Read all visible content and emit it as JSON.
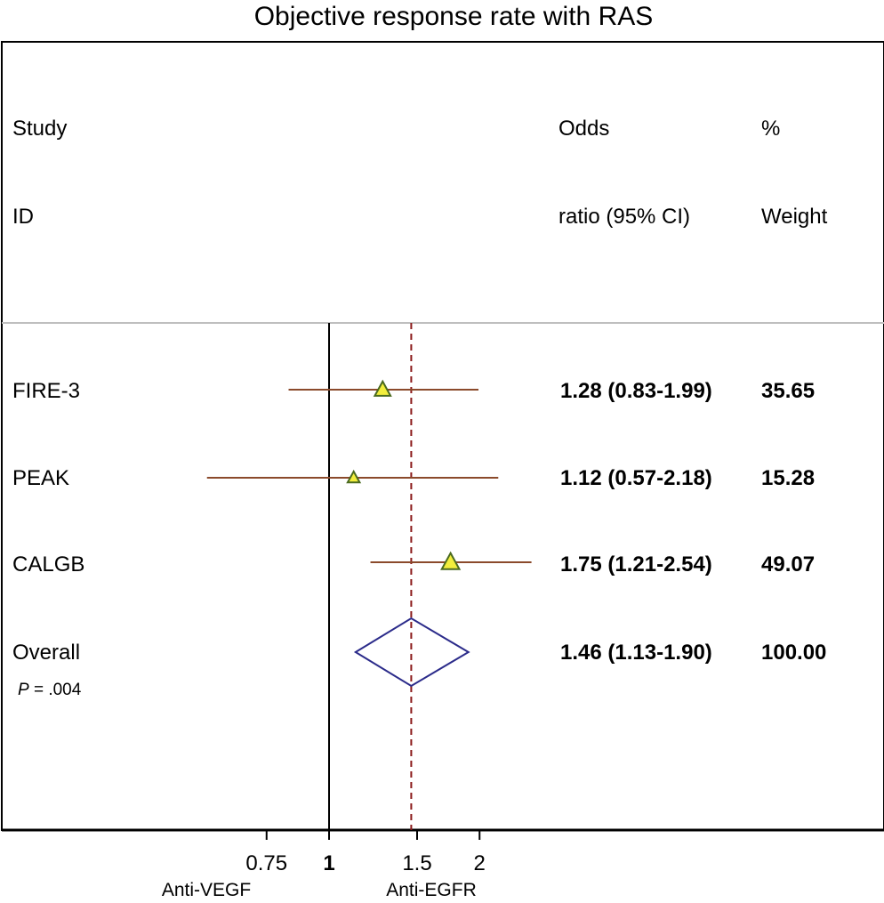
{
  "chart_data": {
    "type": "forest",
    "title": "Objective response rate with RAS",
    "header": {
      "col1_line1": "Study",
      "col1_line2": "ID",
      "col2_line1": "Odds",
      "col2_line2": "ratio (95% CI)",
      "col3_line1": "%",
      "col3_line2": "Weight"
    },
    "studies": [
      {
        "id": "FIRE-3",
        "or": 1.28,
        "lo": 0.83,
        "hi": 1.99,
        "or_text": "1.28 (0.83-1.99)",
        "weight": 35.65,
        "weight_text": "35.65"
      },
      {
        "id": "PEAK",
        "or": 1.12,
        "lo": 0.57,
        "hi": 2.18,
        "or_text": "1.12 (0.57-2.18)",
        "weight": 15.28,
        "weight_text": "15.28"
      },
      {
        "id": "CALGB",
        "or": 1.75,
        "lo": 1.21,
        "hi": 2.54,
        "or_text": "1.75 (1.21-2.54)",
        "weight": 49.07,
        "weight_text": "49.07"
      }
    ],
    "overall": {
      "id": "Overall",
      "or": 1.46,
      "lo": 1.13,
      "hi": 1.9,
      "or_text": "1.46 (1.13-1.90)",
      "weight_text": "100.00"
    },
    "p_label": "P",
    "p_value": " = .004",
    "scale": "log",
    "x_ticks": [
      {
        "value": 0.75,
        "label": "0.75",
        "bold": false
      },
      {
        "value": 1,
        "label": "1",
        "bold": true
      },
      {
        "value": 1.5,
        "label": "1.5",
        "bold": false
      },
      {
        "value": 2,
        "label": "2",
        "bold": false
      }
    ],
    "left_label": "Anti-VEGF",
    "right_label": "Anti-EGFR",
    "colors": {
      "ci_line": "#8b4a2b",
      "marker_fill": "#f2ee3c",
      "marker_edge": "#4a6a1f",
      "diamond": "#2b2b8a",
      "overall_line": "#8b1a1a",
      "separator": "#bfbfbf"
    }
  }
}
